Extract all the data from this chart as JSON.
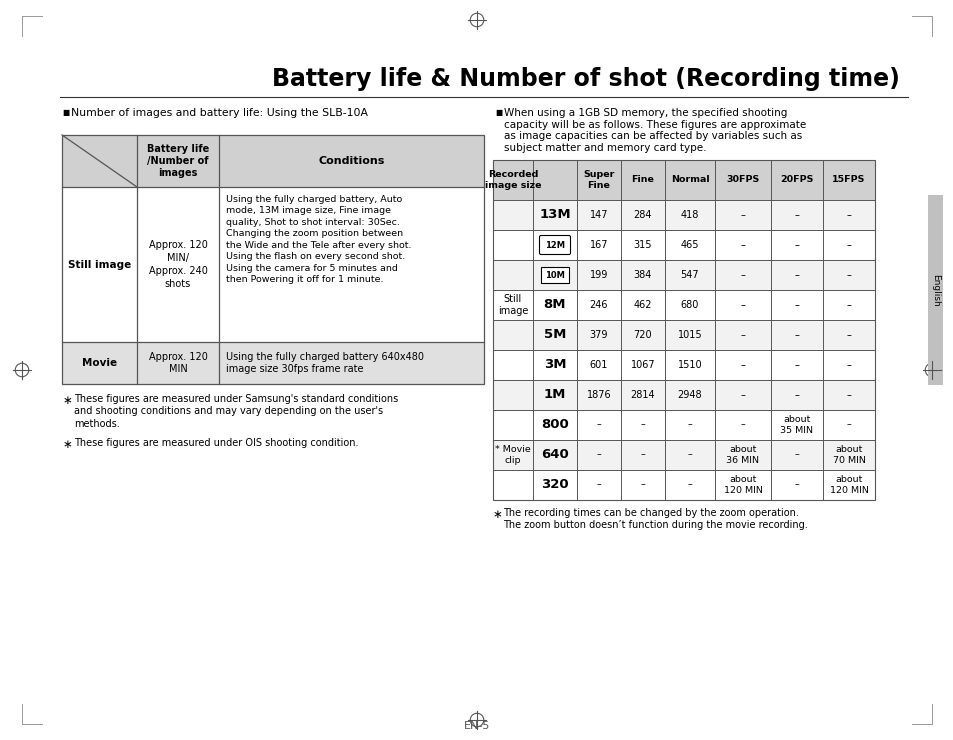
{
  "title": "Battery life & Number of shot (Recording time)",
  "page_number": "EN-5",
  "background_color": "#ffffff",
  "section_left_bullet": "Number of images and battery life: Using the SLB-10A",
  "section_right_bullet": "When using a 1GB SD memory, the specified shooting\ncapacity will be as follows. These figures are approximate\nas image capacities can be affected by variables such as\nsubject matter and memory card type.",
  "left_table_footnotes": [
    "These figures are measured under Samsung's standard conditions\nand shooting conditions and may vary depending on the user's\nmethods.",
    "These figures are measured under OIS shooting condition."
  ],
  "right_table_footnote": "The recording times can be changed by the zoom operation.\nThe zoom button doesn’t function during the movie recording.",
  "header_bg": "#d0d0d0",
  "movie_row_bg": "#e0e0e0",
  "border_color": "#555555",
  "sidebar_color": "#c0c0c0",
  "still_rows": [
    [
      "13M",
      "bold",
      "147",
      "284",
      "418",
      "–",
      "–",
      "–"
    ],
    [
      "12M",
      "icon_round",
      "167",
      "315",
      "465",
      "–",
      "–",
      "–"
    ],
    [
      "10M",
      "icon_box",
      "199",
      "384",
      "547",
      "–",
      "–",
      "–"
    ],
    [
      "8M",
      "bold",
      "246",
      "462",
      "680",
      "–",
      "–",
      "–"
    ],
    [
      "5M",
      "bold",
      "379",
      "720",
      "1015",
      "–",
      "–",
      "–"
    ],
    [
      "3M",
      "bold",
      "601",
      "1067",
      "1510",
      "–",
      "–",
      "–"
    ],
    [
      "1M",
      "bold",
      "1876",
      "2814",
      "2948",
      "–",
      "–",
      "–"
    ]
  ],
  "movie_rows": [
    [
      "800",
      "–",
      "–",
      "–",
      "–",
      "about\n35 MIN",
      "–"
    ],
    [
      "640",
      "–",
      "–",
      "–",
      "about\n36 MIN",
      "–",
      "about\n70 MIN"
    ],
    [
      "320",
      "–",
      "–",
      "–",
      "about\n120 MIN",
      "–",
      "about\n120 MIN"
    ]
  ]
}
